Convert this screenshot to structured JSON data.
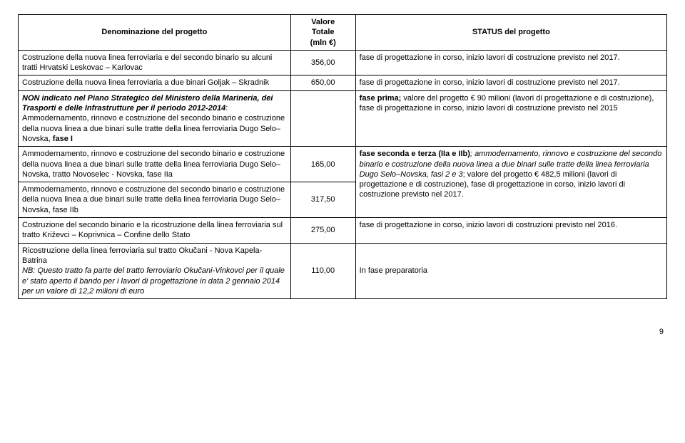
{
  "header": {
    "col1": "Denominazione del progetto",
    "col2_line1": "Valore",
    "col2_line2": "Totale",
    "col2_line3": "(mln €)",
    "col3": "STATUS del progetto"
  },
  "rows": [
    {
      "name": "Costruzione della nuova linea ferroviaria e del secondo binario su alcuni tratti Hrvatski Leskovac – Karlovac",
      "value": "356,00",
      "status": "fase di progettazione in corso, inizio lavori di costruzione previsto nel 2017."
    },
    {
      "name": "Costruzione della nuova linea ferroviaria a due binari Goljak – Skradnik",
      "value": "650,00",
      "status": "fase di progettazione in corso, inizio lavori di costruzione previsto nel 2017."
    }
  ],
  "row_fase1_prefix_bold_italic": "NON indicato nel Piano Strategico del Ministero della Marineria, dei Trasporti e delle Infrastrutture per il periodo 2012-2014",
  "row_fase1_rest": ": Ammodernamento, rinnovo e costruzione del secondo binario e costruzione della nuova linea a due binari sulle tratte della linea ferroviaria Dugo Selo– Novska, ",
  "row_fase1_suffix_bold": "fase I",
  "row_fase1_status_bold": "fase prima;",
  "row_fase1_status_rest": " valore del progetto € 90 milioni (lavori di progettazione e di costruzione), fase di progettazione in corso, inizio lavori di costruzione previsto nel 2015",
  "row_iia_name": "Ammodernamento, rinnovo e costruzione del secondo binario e costruzione della nuova linea a due binari sulle tratte della linea ferroviaria Dugo Selo–Novska, tratto Novoselec - Novska, fase IIa",
  "row_iia_value": "165,00",
  "row_iib_name": "Ammodernamento, rinnovo e costruzione del secondo binario e costruzione della nuova linea a due binari sulle tratte della linea ferroviaria Dugo Selo–Novska, fase IIb",
  "row_iib_value": "317,50",
  "row_ii_status_bold": "fase seconda e terza (IIa e IIb)",
  "row_ii_status_italic": "; ammodernamento, rinnovo e costruzione del secondo binario e costruzione della nuova linea a due binari sulle tratte della linea ferroviaria Dugo Selo–Novska, fasi 2 e 3",
  "row_ii_status_rest1": "; valore del progetto € 482,5 milioni (lavori di progettazione e di costruzione), fase di progettazione in corso,  inizio lavori di costruzione previsto nel 2017.",
  "row_confine_name": "Costruzione del secondo binario e la ricostruzione della linea ferroviaria sul tratto Križevci – Koprivnica – Confine dello Stato",
  "row_confine_value": "275,00",
  "row_confine_status": "fase di progettazione in corso, inizio lavori di costruzioni previsto nel 2016.",
  "row_last_line1": "Ricostruzione della linea ferroviaria sul tratto Okučani - Nova Kapela-Batrina",
  "row_last_italic": "NB: Questo tratto fa parte del tratto ferroviario Okučani-Vinkovci per il quale e' stato aperto il bando per i lavori di progettazione in data 2 gennaio 2014 per un valore di 12,2 milioni di euro",
  "row_last_value": "110,00",
  "row_last_status": "In fase preparatoria",
  "page_number": "9"
}
